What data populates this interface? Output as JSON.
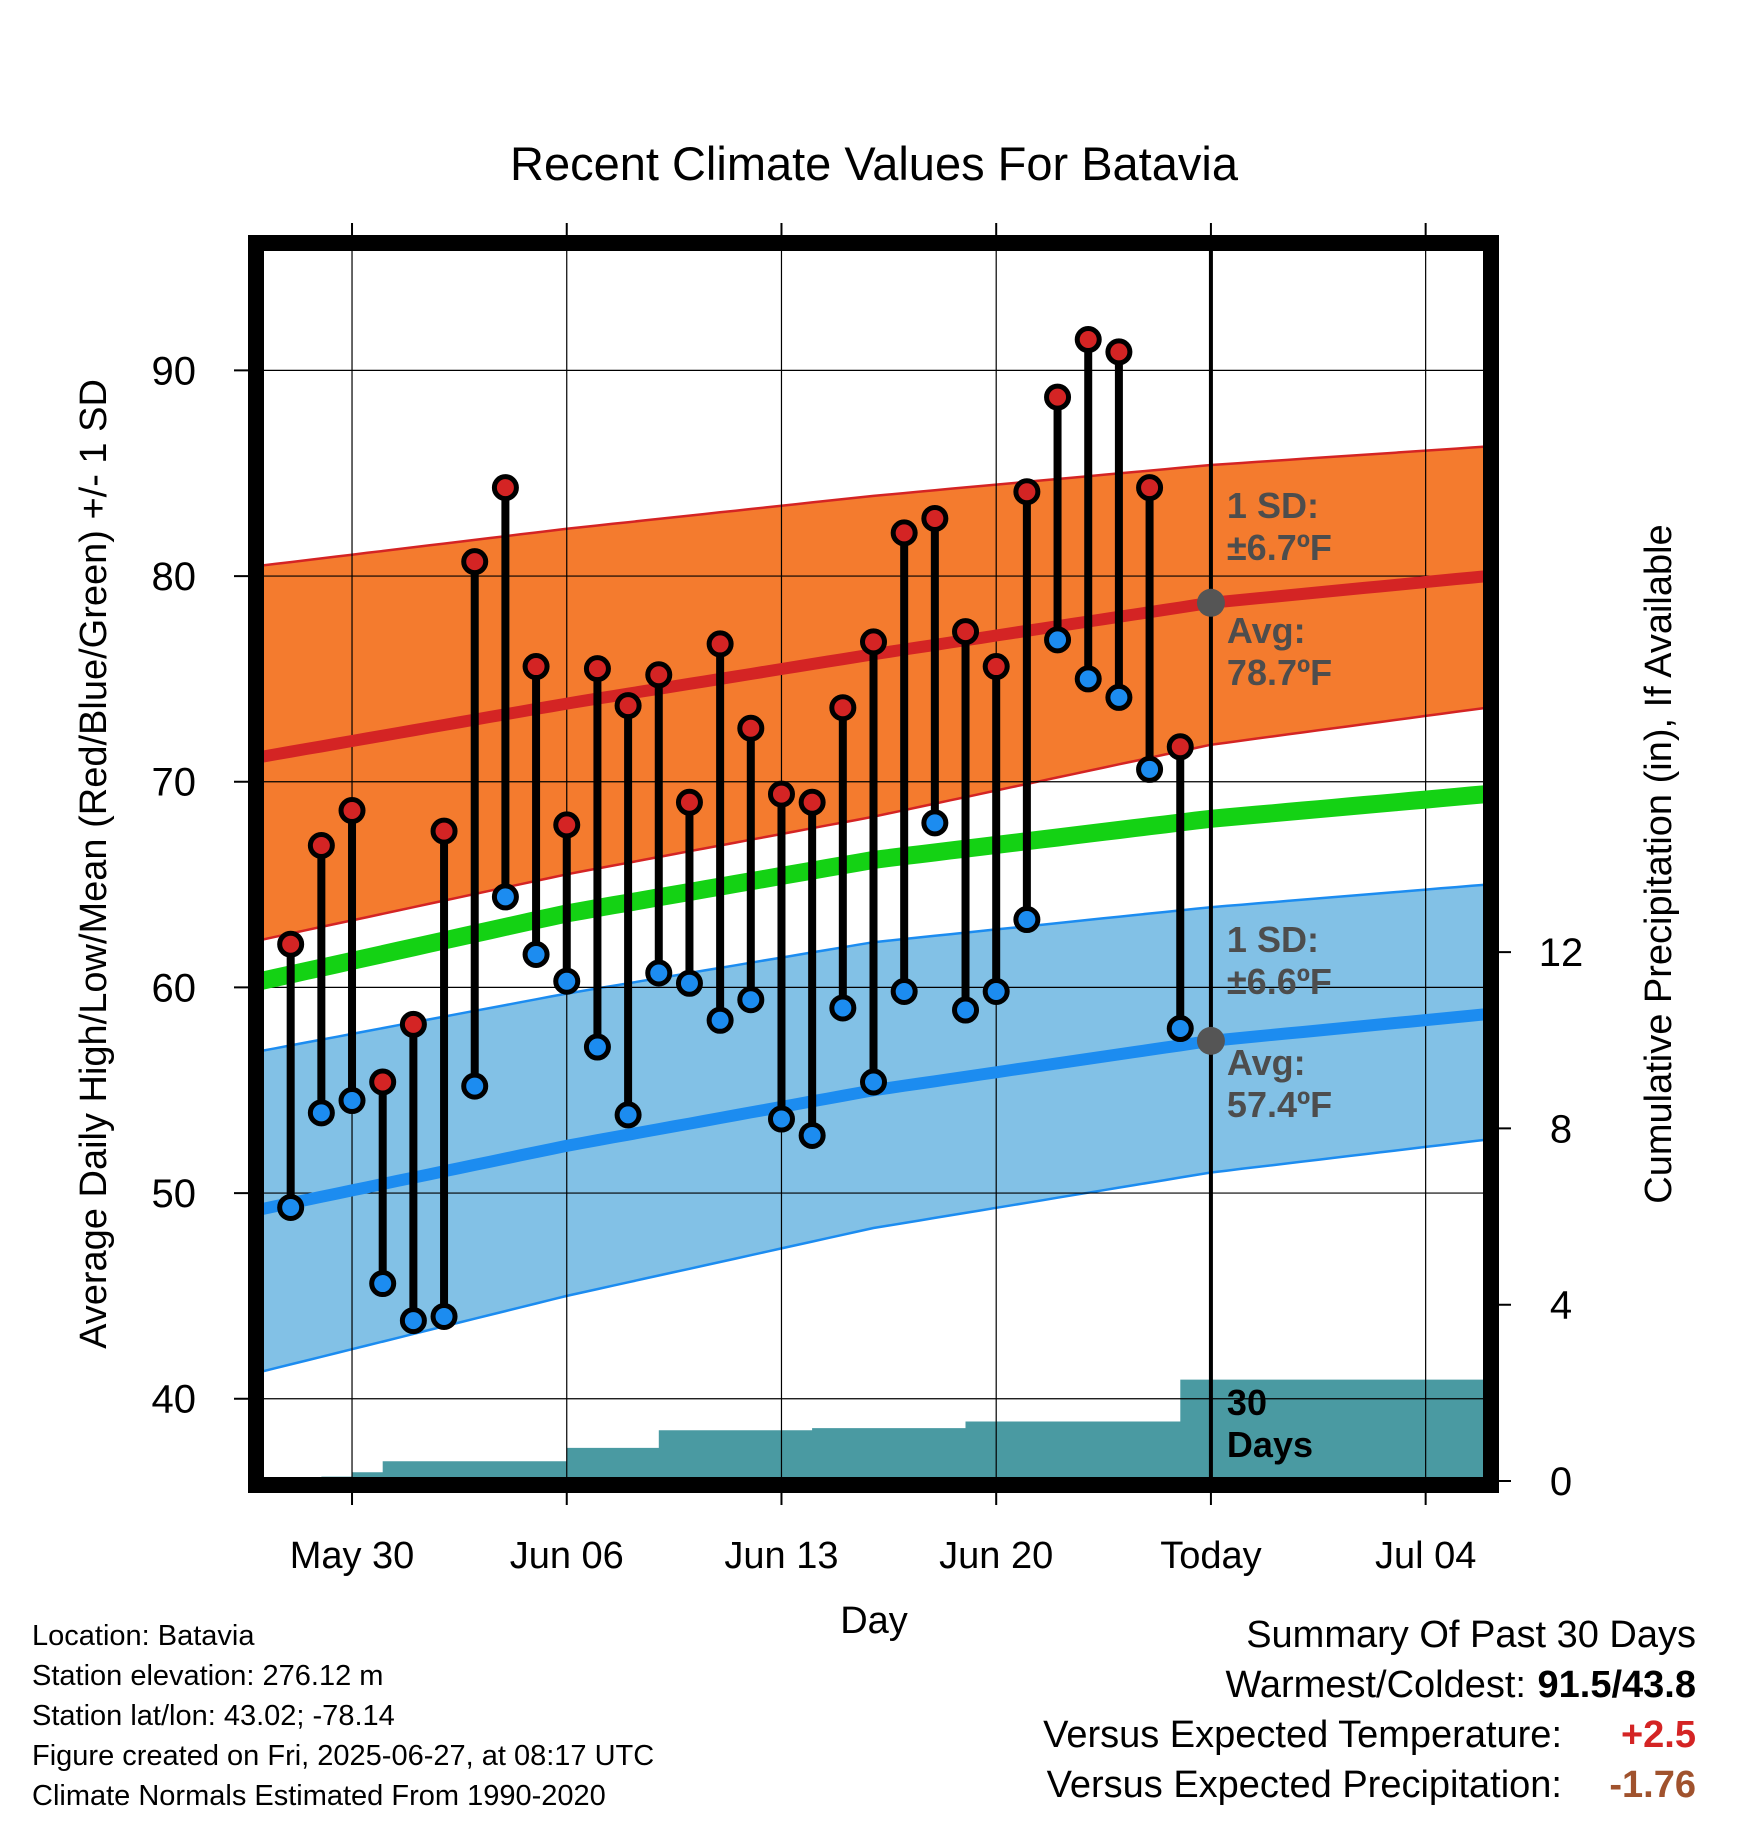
{
  "title": "Recent Climate Values For Batavia",
  "chart_data": {
    "type": "line",
    "title": "Recent Climate Values For Batavia",
    "xlabel": "Day",
    "ylabel": "Average Daily High/Low/Mean (Red/Blue/Green) +/- 1 SD",
    "y2label": "Cumulative Precipitation (in), If Available",
    "xlim": [
      "2025-05-27",
      "2025-07-06"
    ],
    "ylim": [
      36,
      96
    ],
    "y2lim": [
      0,
      28
    ],
    "x_ticks": [
      {
        "date": "2025-05-30",
        "label": "May 30"
      },
      {
        "date": "2025-06-06",
        "label": "Jun 06"
      },
      {
        "date": "2025-06-13",
        "label": "Jun 13"
      },
      {
        "date": "2025-06-20",
        "label": "Jun 20"
      },
      {
        "date": "2025-06-27",
        "label": "Today"
      },
      {
        "date": "2025-07-04",
        "label": "Jul 04"
      }
    ],
    "y_ticks": [
      40,
      50,
      60,
      70,
      80,
      90
    ],
    "y2_ticks": [
      0,
      4,
      8,
      12
    ],
    "grid": true,
    "colors": {
      "high_band": "#f47b2e",
      "high_line": "#d42424",
      "low_band": "#82c1e6",
      "low_line": "#1c8cf0",
      "mean_line": "#14d214",
      "precip": "#4a9aa2",
      "high_dot": "#d42424",
      "low_dot": "#1c8cf0",
      "today_marker": "#555555",
      "annotation": "#4d4d4d"
    },
    "normals": {
      "dates": [
        "2025-05-27",
        "2025-06-06",
        "2025-06-16",
        "2025-06-27",
        "2025-07-06"
      ],
      "avg_high": [
        71.2,
        73.8,
        76.2,
        78.7,
        80.0
      ],
      "high_sd_upper": [
        80.5,
        82.3,
        83.9,
        85.4,
        86.3
      ],
      "high_sd_lower": [
        62.3,
        65.5,
        68.3,
        71.8,
        73.6
      ],
      "avg_mean": [
        60.3,
        63.6,
        66.2,
        68.2,
        69.4
      ],
      "avg_low": [
        49.2,
        52.3,
        55.0,
        57.4,
        58.7
      ],
      "low_sd_upper": [
        56.9,
        59.7,
        62.2,
        63.9,
        65.0
      ],
      "low_sd_lower": [
        41.3,
        45.0,
        48.3,
        51.0,
        52.6
      ]
    },
    "series": [
      {
        "name": "High",
        "x": [
          "2025-05-28",
          "2025-05-29",
          "2025-05-30",
          "2025-05-31",
          "2025-06-01",
          "2025-06-02",
          "2025-06-03",
          "2025-06-04",
          "2025-06-05",
          "2025-06-06",
          "2025-06-07",
          "2025-06-08",
          "2025-06-09",
          "2025-06-10",
          "2025-06-11",
          "2025-06-12",
          "2025-06-13",
          "2025-06-14",
          "2025-06-15",
          "2025-06-16",
          "2025-06-17",
          "2025-06-18",
          "2025-06-19",
          "2025-06-20",
          "2025-06-21",
          "2025-06-22",
          "2025-06-23",
          "2025-06-24",
          "2025-06-25",
          "2025-06-26"
        ],
        "values": [
          62.1,
          66.9,
          68.6,
          55.4,
          58.2,
          67.6,
          80.7,
          84.3,
          75.6,
          67.9,
          75.5,
          73.7,
          75.2,
          69.0,
          76.7,
          72.6,
          69.4,
          69.0,
          73.6,
          76.8,
          82.1,
          82.8,
          77.3,
          75.6,
          84.1,
          88.7,
          91.5,
          90.9,
          84.3,
          71.7
        ]
      },
      {
        "name": "Low",
        "x": [
          "2025-05-28",
          "2025-05-29",
          "2025-05-30",
          "2025-05-31",
          "2025-06-01",
          "2025-06-02",
          "2025-06-03",
          "2025-06-04",
          "2025-06-05",
          "2025-06-06",
          "2025-06-07",
          "2025-06-08",
          "2025-06-09",
          "2025-06-10",
          "2025-06-11",
          "2025-06-12",
          "2025-06-13",
          "2025-06-14",
          "2025-06-15",
          "2025-06-16",
          "2025-06-17",
          "2025-06-18",
          "2025-06-19",
          "2025-06-20",
          "2025-06-21",
          "2025-06-22",
          "2025-06-23",
          "2025-06-24",
          "2025-06-25",
          "2025-06-26"
        ],
        "values": [
          49.3,
          53.9,
          54.5,
          45.6,
          43.8,
          44.0,
          55.2,
          64.4,
          61.6,
          60.3,
          57.1,
          53.8,
          60.7,
          60.2,
          58.4,
          59.4,
          53.6,
          52.8,
          59.0,
          55.4,
          59.8,
          68.0,
          58.9,
          59.8,
          63.3,
          76.9,
          75.0,
          74.1,
          70.6,
          58.0
        ]
      }
    ],
    "precip": {
      "x": [
        "2025-05-27",
        "2025-05-28",
        "2025-05-29",
        "2025-05-30",
        "2025-05-31",
        "2025-06-01",
        "2025-06-02",
        "2025-06-03",
        "2025-06-04",
        "2025-06-05",
        "2025-06-06",
        "2025-06-07",
        "2025-06-08",
        "2025-06-09",
        "2025-06-10",
        "2025-06-11",
        "2025-06-12",
        "2025-06-13",
        "2025-06-14",
        "2025-06-15",
        "2025-06-16",
        "2025-06-17",
        "2025-06-18",
        "2025-06-19",
        "2025-06-20",
        "2025-06-21",
        "2025-06-22",
        "2025-06-23",
        "2025-06-24",
        "2025-06-25",
        "2025-06-26",
        "2025-07-06"
      ],
      "values": [
        0.0,
        0.05,
        0.1,
        0.2,
        0.45,
        0.45,
        0.45,
        0.45,
        0.45,
        0.45,
        0.75,
        0.75,
        0.75,
        1.15,
        1.15,
        1.15,
        1.15,
        1.15,
        1.2,
        1.2,
        1.2,
        1.2,
        1.2,
        1.35,
        1.35,
        1.35,
        1.35,
        1.35,
        1.35,
        1.35,
        2.3,
        2.3
      ]
    },
    "annotations": {
      "high_sd": [
        "1 SD:",
        "±6.7ºF"
      ],
      "high_avg": [
        "Avg:",
        "78.7ºF"
      ],
      "low_sd": [
        "1 SD:",
        "±6.6ºF"
      ],
      "low_avg": [
        "Avg:",
        "57.4ºF"
      ],
      "precip_days": [
        "30",
        "Days"
      ]
    },
    "today": "2025-06-27",
    "today_high_avg": 78.7,
    "today_low_avg": 57.4
  },
  "footer": {
    "location": "Location: Batavia",
    "elevation": "Station elevation: 276.12 m",
    "latlon": "Station lat/lon: 43.02; -78.14",
    "created": "Figure created on Fri, 2025-06-27, at 08:17 UTC",
    "normals": "Climate Normals Estimated From 1990-2020"
  },
  "summary": {
    "title": "Summary Of Past 30 Days",
    "warmest_label": "Warmest/Coldest:",
    "warmest_value": "91.5/43.8",
    "temp_label": "Versus Expected Temperature:",
    "temp_value": "+2.5",
    "temp_color": "#d42424",
    "precip_label": "Versus Expected Precipitation:",
    "precip_value": "-1.76",
    "precip_color": "#a0522d"
  }
}
